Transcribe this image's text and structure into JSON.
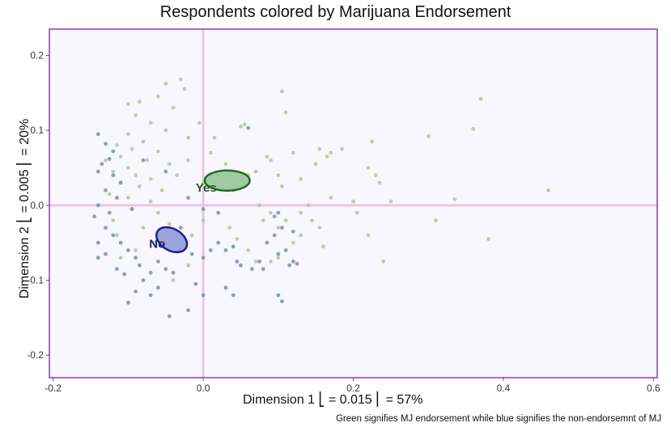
{
  "chart_data": {
    "type": "scatter",
    "title": "Respondents colored by Marijuana Endorsement",
    "xlabel": "Dimension 1 ⎣ = 0.015 ⎜ = 57%",
    "ylabel": "Dimension 2 ⎣ = 0.005 ⎜ = 20%",
    "caption": "Green signifies MJ endorsement while blue signifies the non-endorsemnt of MJ",
    "xlim": [
      -0.205,
      0.605
    ],
    "ylim": [
      -0.23,
      0.235
    ],
    "x_ticks": [
      -0.2,
      0.0,
      0.2,
      0.4,
      0.6
    ],
    "x_tick_labels": [
      "-0.2",
      "0.0",
      "0.2",
      "0.4",
      "0.6"
    ],
    "y_ticks": [
      -0.2,
      -0.1,
      0.0,
      0.1,
      0.2
    ],
    "y_tick_labels": [
      "-0.2",
      "-0.1",
      "0.0",
      "0.1",
      "0.2"
    ],
    "grid": false,
    "colors": {
      "frame": "#8b3fb0",
      "panel": "#f9f7fe",
      "axis_lines": "#e6c6e8",
      "yes_point": "#b3cf8e",
      "no_point": "#7b93c3",
      "yes_ellipse_fill": "#90c290",
      "yes_ellipse_stroke": "#1e6b1e",
      "yes_label": "#1e5a1e",
      "no_ellipse_fill": "#8c94d2",
      "no_ellipse_stroke": "#20208a",
      "no_label": "#20207a"
    },
    "series": [
      {
        "name": "Yes",
        "points": [
          [
            -0.1,
            0.135
          ],
          [
            -0.09,
            0.12
          ],
          [
            -0.085,
            0.138
          ],
          [
            -0.05,
            0.162
          ],
          [
            -0.03,
            0.168
          ],
          [
            -0.025,
            0.155
          ],
          [
            -0.06,
            0.145
          ],
          [
            -0.04,
            0.13
          ],
          [
            -0.07,
            0.11
          ],
          [
            -0.1,
            0.095
          ],
          [
            -0.08,
            0.085
          ],
          [
            -0.115,
            0.08
          ],
          [
            -0.095,
            0.075
          ],
          [
            -0.06,
            0.072
          ],
          [
            -0.11,
            0.065
          ],
          [
            -0.13,
            0.06
          ],
          [
            -0.075,
            0.06
          ],
          [
            -0.045,
            0.055
          ],
          [
            -0.1,
            0.05
          ],
          [
            -0.12,
            0.045
          ],
          [
            -0.09,
            0.04
          ],
          [
            -0.07,
            0.035
          ],
          [
            -0.035,
            0.04
          ],
          [
            -0.02,
            0.06
          ],
          [
            -0.11,
            0.03
          ],
          [
            -0.085,
            0.025
          ],
          [
            -0.055,
            0.02
          ],
          [
            -0.125,
            0.015
          ],
          [
            -0.1,
            0.01
          ],
          [
            -0.07,
            0.005
          ],
          [
            -0.095,
            -0.005
          ],
          [
            -0.06,
            -0.01
          ],
          [
            -0.12,
            -0.02
          ],
          [
            -0.045,
            -0.025
          ],
          [
            -0.08,
            -0.03
          ],
          [
            -0.115,
            -0.04
          ],
          [
            -0.065,
            -0.05
          ],
          [
            -0.03,
            -0.06
          ],
          [
            -0.02,
            -0.08
          ],
          [
            -0.04,
            -0.1
          ],
          [
            -0.09,
            -0.06
          ],
          [
            -0.11,
            -0.07
          ],
          [
            -0.005,
            0.11
          ],
          [
            0.0,
            -0.02
          ],
          [
            0.01,
            0.07
          ],
          [
            0.02,
            0.04
          ],
          [
            0.03,
            0.055
          ],
          [
            0.04,
            0.02
          ],
          [
            0.05,
            0.105
          ],
          [
            0.055,
            0.108
          ],
          [
            0.06,
            0.04
          ],
          [
            0.07,
            0.045
          ],
          [
            0.085,
            0.065
          ],
          [
            0.09,
            0.06
          ],
          [
            0.1,
            0.04
          ],
          [
            0.105,
            0.152
          ],
          [
            0.11,
            0.124
          ],
          [
            0.105,
            0.025
          ],
          [
            0.12,
            0.07
          ],
          [
            0.13,
            0.035
          ],
          [
            0.075,
            0.0
          ],
          [
            0.08,
            -0.02
          ],
          [
            0.09,
            -0.01
          ],
          [
            0.1,
            -0.03
          ],
          [
            0.11,
            -0.02
          ],
          [
            0.13,
            -0.01
          ],
          [
            0.12,
            -0.05
          ],
          [
            0.1,
            -0.07
          ],
          [
            0.09,
            -0.075
          ],
          [
            0.15,
            0.055
          ],
          [
            0.155,
            0.075
          ],
          [
            0.165,
            0.065
          ],
          [
            0.17,
            0.07
          ],
          [
            0.185,
            0.075
          ],
          [
            0.17,
            0.01
          ],
          [
            0.14,
            0.0
          ],
          [
            0.145,
            -0.02
          ],
          [
            0.155,
            -0.03
          ],
          [
            0.16,
            -0.055
          ],
          [
            0.13,
            -0.04
          ],
          [
            0.2,
            0.005
          ],
          [
            0.205,
            -0.01
          ],
          [
            0.22,
            0.05
          ],
          [
            0.225,
            0.085
          ],
          [
            0.23,
            0.04
          ],
          [
            0.235,
            0.03
          ],
          [
            0.24,
            -0.075
          ],
          [
            0.25,
            0.005
          ],
          [
            0.3,
            0.092
          ],
          [
            0.31,
            -0.02
          ],
          [
            0.335,
            0.008
          ],
          [
            0.36,
            0.102
          ],
          [
            0.37,
            0.142
          ],
          [
            0.38,
            -0.045
          ],
          [
            0.46,
            0.02
          ],
          [
            0.22,
            -0.04
          ],
          [
            0.035,
            -0.03
          ],
          [
            0.045,
            -0.045
          ],
          [
            0.06,
            -0.06
          ],
          [
            -0.015,
            -0.04
          ],
          [
            0.0,
            0.03
          ],
          [
            0.015,
            0.09
          ],
          [
            -0.05,
            0.1
          ],
          [
            -0.02,
            0.09
          ],
          [
            0.07,
            -0.075
          ]
        ]
      },
      {
        "name": "No",
        "points": [
          [
            -0.14,
            0.095
          ],
          [
            -0.13,
            0.082
          ],
          [
            -0.12,
            0.072
          ],
          [
            -0.125,
            0.062
          ],
          [
            -0.135,
            0.055
          ],
          [
            -0.14,
            0.045
          ],
          [
            -0.12,
            0.04
          ],
          [
            -0.11,
            0.03
          ],
          [
            -0.13,
            0.02
          ],
          [
            -0.115,
            0.01
          ],
          [
            -0.14,
            0.0
          ],
          [
            -0.125,
            -0.01
          ],
          [
            -0.145,
            -0.015
          ],
          [
            -0.13,
            -0.03
          ],
          [
            -0.12,
            -0.04
          ],
          [
            -0.14,
            -0.05
          ],
          [
            -0.11,
            -0.05
          ],
          [
            -0.1,
            -0.06
          ],
          [
            -0.09,
            -0.07
          ],
          [
            -0.13,
            -0.065
          ],
          [
            -0.115,
            -0.085
          ],
          [
            -0.105,
            -0.092
          ],
          [
            -0.14,
            -0.07
          ],
          [
            -0.085,
            -0.08
          ],
          [
            -0.06,
            -0.075
          ],
          [
            -0.05,
            -0.085
          ],
          [
            -0.07,
            -0.09
          ],
          [
            -0.08,
            -0.1
          ],
          [
            -0.06,
            -0.11
          ],
          [
            -0.09,
            -0.115
          ],
          [
            -0.1,
            -0.13
          ],
          [
            -0.07,
            -0.12
          ],
          [
            -0.04,
            -0.09
          ],
          [
            -0.045,
            -0.148
          ],
          [
            -0.02,
            -0.14
          ],
          [
            -0.015,
            -0.065
          ],
          [
            -0.05,
            0.045
          ],
          [
            -0.03,
            -0.03
          ],
          [
            0.0,
            -0.07
          ],
          [
            0.01,
            -0.06
          ],
          [
            0.02,
            -0.05
          ],
          [
            0.03,
            -0.06
          ],
          [
            0.04,
            -0.055
          ],
          [
            0.045,
            -0.075
          ],
          [
            0.05,
            -0.08
          ],
          [
            0.06,
            0.103
          ],
          [
            0.065,
            -0.085
          ],
          [
            0.075,
            -0.075
          ],
          [
            0.08,
            -0.085
          ],
          [
            0.085,
            -0.05
          ],
          [
            0.095,
            -0.04
          ],
          [
            0.1,
            -0.065
          ],
          [
            0.11,
            -0.06
          ],
          [
            0.115,
            -0.08
          ],
          [
            0.12,
            -0.075
          ],
          [
            0.095,
            -0.015
          ],
          [
            0.1,
            -0.01
          ],
          [
            0.105,
            -0.03
          ],
          [
            0.12,
            -0.035
          ],
          [
            0.03,
            -0.11
          ],
          [
            0.04,
            -0.12
          ],
          [
            0.0,
            -0.12
          ],
          [
            -0.01,
            -0.105
          ],
          [
            0.1,
            -0.12
          ],
          [
            0.105,
            -0.128
          ],
          [
            -0.02,
            0.01
          ],
          [
            0.0,
            -0.005
          ],
          [
            0.02,
            -0.01
          ],
          [
            0.125,
            -0.078
          ],
          [
            -0.095,
            -0.005
          ],
          [
            -0.08,
            0.06
          ]
        ]
      }
    ],
    "ellipses": [
      {
        "name": "Yes",
        "cx": 0.032,
        "cy": 0.033,
        "rx": 0.03,
        "ry": 0.0135,
        "angle": 0
      },
      {
        "name": "No",
        "cx": -0.042,
        "cy": -0.046,
        "rx": 0.022,
        "ry": 0.0145,
        "angle": 30
      }
    ],
    "group_labels": [
      {
        "text": "Yes",
        "x": -0.01,
        "y": 0.018
      },
      {
        "text": "No",
        "x": -0.072,
        "y": -0.057
      }
    ]
  }
}
